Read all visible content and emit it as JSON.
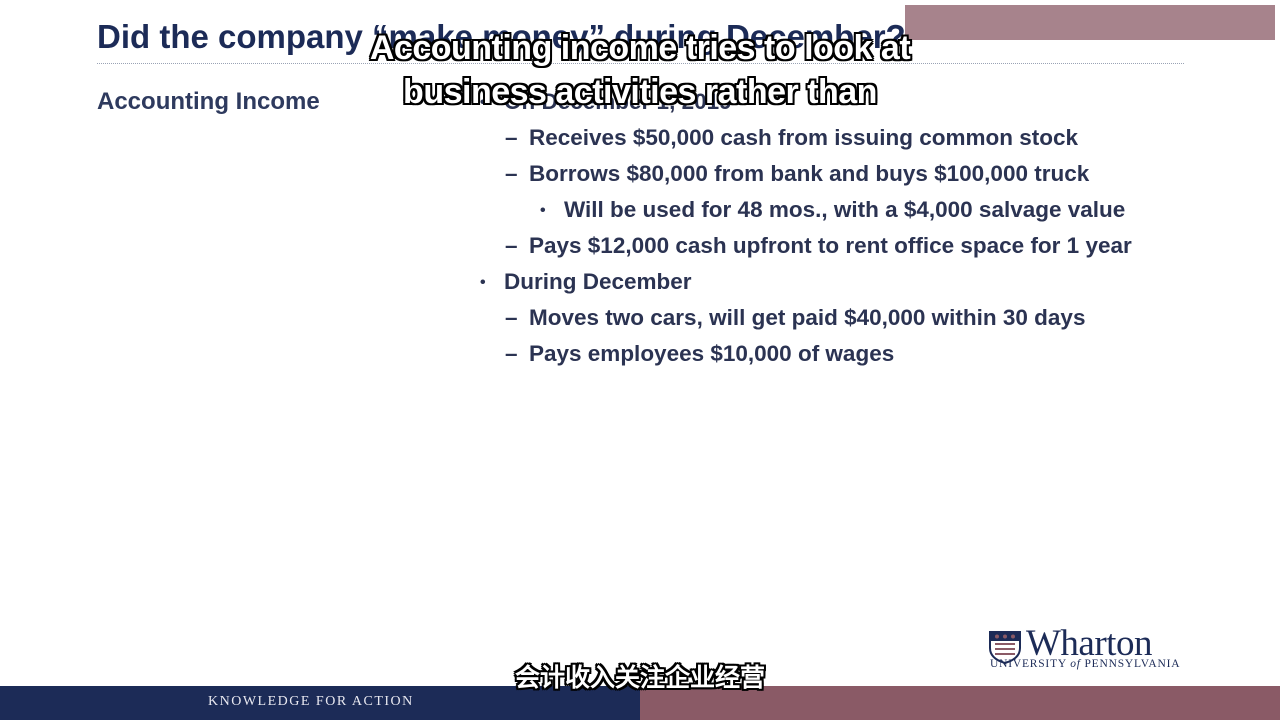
{
  "slide": {
    "title": "Did the company “make money” during December?",
    "section_label": "Accounting Income",
    "bullets": [
      {
        "level": 1,
        "marker": "•",
        "text": "On December 1, 2019"
      },
      {
        "level": 2,
        "marker": "–",
        "text": "Receives $50,000 cash from issuing common stock"
      },
      {
        "level": 2,
        "marker": "–",
        "text": "Borrows $80,000 from bank and buys $100,000 truck"
      },
      {
        "level": 3,
        "marker": "•",
        "text": "Will be used for 48 mos., with a $4,000 salvage value"
      },
      {
        "level": 2,
        "marker": "–",
        "text": "Pays $12,000 cash upfront to rent office space for 1 year"
      },
      {
        "level": 1,
        "marker": "•",
        "text": "During December"
      },
      {
        "level": 2,
        "marker": "–",
        "text": "Moves two cars, will get paid $40,000 within 30 days"
      },
      {
        "level": 2,
        "marker": "–",
        "text": "Pays employees $10,000 of wages"
      }
    ]
  },
  "captions": {
    "english": [
      "Accounting income tries to look at",
      "business activities rather than"
    ],
    "chinese": "会计收入关注企业经营"
  },
  "branding": {
    "logo_word": "Wharton",
    "logo_sub_before": "UNIVERSITY ",
    "logo_sub_of": "of",
    "logo_sub_after": " PENNSYLVANIA",
    "tagline": "KNOWLEDGE FOR ACTION",
    "logo_icon": "penn-shield-icon"
  },
  "colors": {
    "navy": "#1c2b57",
    "maroon": "#8a5a66",
    "text": "#2b3352"
  }
}
